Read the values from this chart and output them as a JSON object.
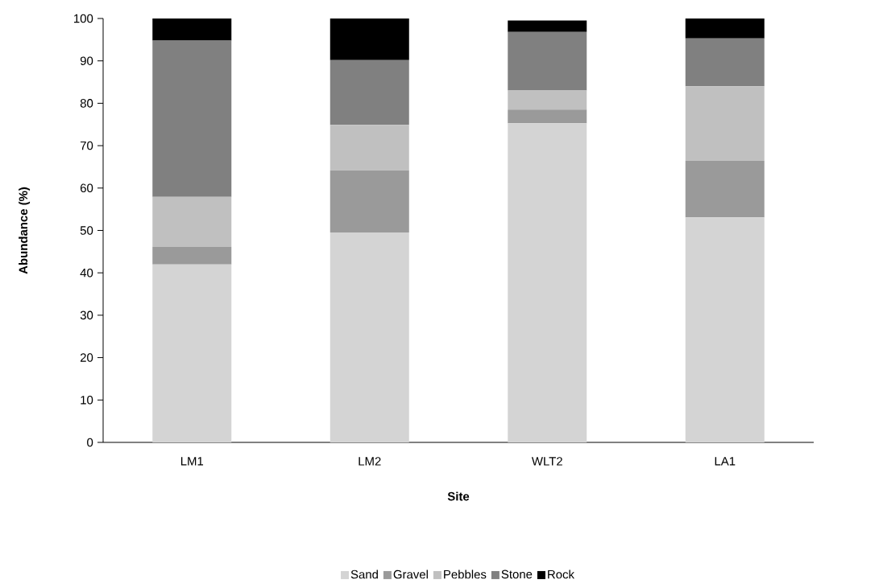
{
  "chart_data": {
    "type": "bar",
    "stacked": true,
    "xlabel": "Site",
    "ylabel": "Abundance (%)",
    "categories": [
      "LM1",
      "LM2",
      "WLT2",
      "LA1"
    ],
    "series": [
      {
        "name": "Sand",
        "color": "#d4d4d4",
        "values": [
          42.0,
          49.5,
          75.3,
          53.1
        ]
      },
      {
        "name": "Gravel",
        "color": "#9a9a9a",
        "values": [
          4.1,
          14.7,
          3.2,
          13.3
        ]
      },
      {
        "name": "Pebbles",
        "color": "#c0c0c0",
        "values": [
          11.8,
          10.7,
          4.5,
          17.6
        ]
      },
      {
        "name": "Stone",
        "color": "#808080",
        "values": [
          36.9,
          15.3,
          13.8,
          11.3
        ]
      },
      {
        "name": "Rock",
        "color": "#000000",
        "values": [
          5.2,
          9.8,
          2.7,
          4.7
        ]
      }
    ],
    "ylim": [
      0,
      100
    ],
    "yticks": [
      0,
      10,
      20,
      30,
      40,
      50,
      60,
      70,
      80,
      90,
      100
    ],
    "grid": false,
    "legend": "bottom"
  }
}
